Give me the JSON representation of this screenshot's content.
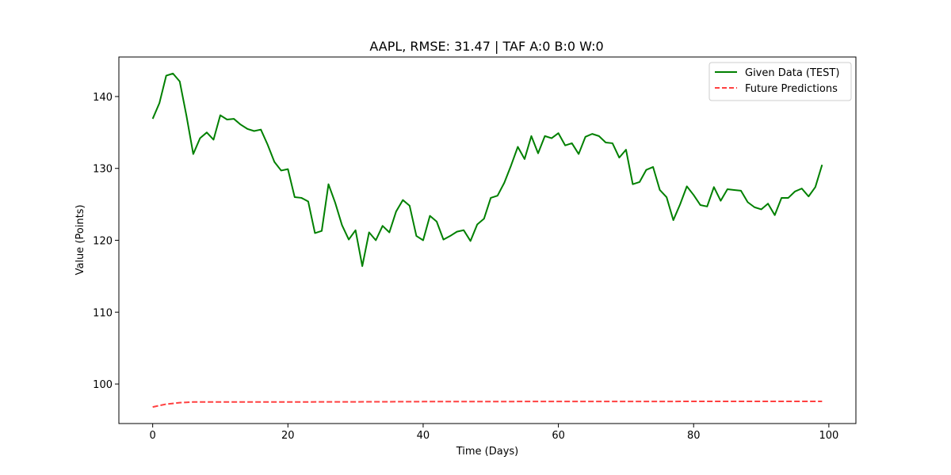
{
  "chart_data": {
    "type": "line",
    "title": "AAPL, RMSE: 31.47 | TAF A:0 B:0 W:0",
    "xlabel": "Time (Days)",
    "ylabel": "Value (Points)",
    "xlim": [
      -5,
      104
    ],
    "ylim": [
      94.5,
      145.5
    ],
    "xticks": [
      0,
      20,
      40,
      60,
      80,
      100
    ],
    "yticks": [
      100,
      110,
      120,
      130,
      140
    ],
    "grid": false,
    "legend_position": "top-right",
    "series": [
      {
        "name": "Given Data (TEST)",
        "color": "#008000",
        "style": "solid",
        "x": [
          0,
          1,
          2,
          3,
          4,
          5,
          6,
          7,
          8,
          9,
          10,
          11,
          12,
          13,
          14,
          15,
          16,
          17,
          18,
          19,
          20,
          21,
          22,
          23,
          24,
          25,
          26,
          27,
          28,
          29,
          30,
          31,
          32,
          33,
          34,
          35,
          36,
          37,
          38,
          39,
          40,
          41,
          42,
          43,
          44,
          45,
          46,
          47,
          48,
          49,
          50,
          51,
          52,
          53,
          54,
          55,
          56,
          57,
          58,
          59,
          60,
          61,
          62,
          63,
          64,
          65,
          66,
          67,
          68,
          69,
          70,
          71,
          72,
          73,
          74,
          75,
          76,
          77,
          78,
          79,
          80,
          81,
          82,
          83,
          84,
          85,
          86,
          87,
          88,
          89,
          90,
          91,
          92,
          93,
          94,
          95,
          96,
          97,
          98,
          99
        ],
        "values": [
          136.9,
          139.1,
          142.9,
          143.2,
          142.1,
          137.3,
          132.0,
          134.2,
          135.0,
          134.0,
          137.4,
          136.8,
          136.9,
          136.1,
          135.5,
          135.2,
          135.4,
          133.3,
          130.9,
          129.7,
          129.9,
          126.0,
          125.9,
          125.4,
          121.0,
          121.3,
          127.8,
          125.2,
          122.1,
          120.1,
          121.4,
          116.4,
          121.1,
          120.0,
          122.0,
          121.1,
          124.0,
          125.6,
          124.8,
          120.6,
          120.0,
          123.4,
          122.6,
          120.1,
          120.6,
          121.2,
          121.4,
          119.9,
          122.2,
          123.0,
          125.9,
          126.2,
          128.0,
          130.4,
          133.0,
          131.3,
          134.5,
          132.1,
          134.5,
          134.2,
          134.9,
          133.2,
          133.5,
          132.0,
          134.4,
          134.8,
          134.5,
          133.6,
          133.5,
          131.5,
          132.6,
          127.8,
          128.1,
          129.8,
          130.2,
          127.0,
          126.0,
          122.8,
          125.0,
          127.5,
          126.3,
          124.9,
          124.7,
          127.4,
          125.5,
          127.1,
          127.0,
          126.9,
          125.3,
          124.6,
          124.3,
          125.1,
          123.5,
          125.9,
          125.9,
          126.8,
          127.2,
          126.1,
          127.4,
          130.5
        ]
      },
      {
        "name": "Future Predictions",
        "color": "#ff0000",
        "style": "dashed",
        "x": [
          0,
          1,
          2,
          3,
          4,
          5,
          6,
          7,
          8,
          9,
          10,
          20,
          30,
          40,
          50,
          60,
          70,
          80,
          90,
          99
        ],
        "values": [
          96.8,
          97.0,
          97.2,
          97.3,
          97.4,
          97.45,
          97.5,
          97.5,
          97.5,
          97.5,
          97.5,
          97.5,
          97.52,
          97.55,
          97.56,
          97.57,
          97.57,
          97.58,
          97.58,
          97.58
        ]
      }
    ]
  }
}
